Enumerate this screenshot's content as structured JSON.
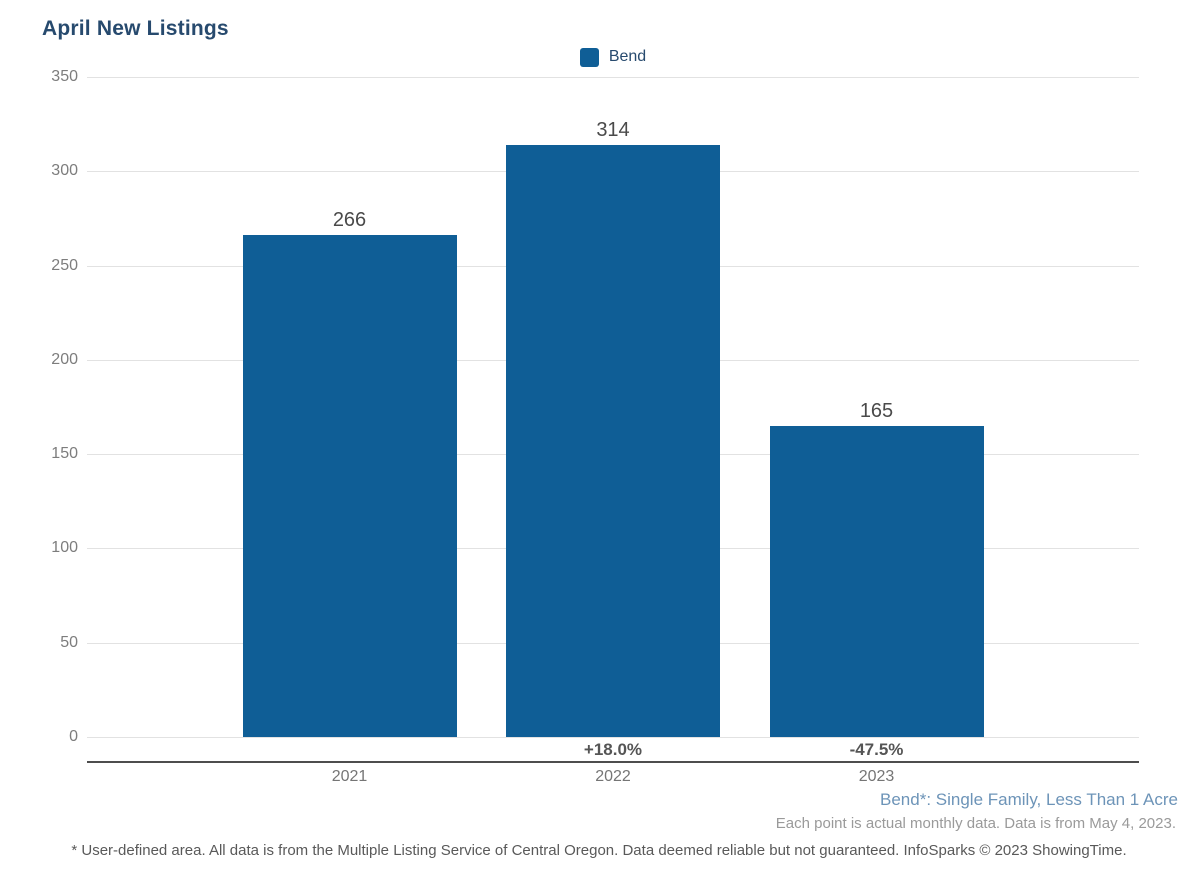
{
  "title": "April New Listings",
  "legend": {
    "label": "Bend",
    "color": "#0f5e96"
  },
  "colors": {
    "bar": "#0f5e96",
    "title_navy": "#274a6e",
    "footnote_blue": "#6d94b8",
    "axis_line": "#4d4d4d"
  },
  "chart_data": {
    "type": "bar",
    "title": "April New Listings",
    "series_name": "Bend",
    "categories": [
      "2021",
      "2022",
      "2023"
    ],
    "values": [
      266,
      314,
      165
    ],
    "value_labels": [
      "266",
      "314",
      "165"
    ],
    "pct_change_labels": [
      "",
      "+18.0%",
      "-47.5%"
    ],
    "xlabel": "",
    "ylabel": "",
    "ylim": [
      0,
      350
    ],
    "yticks": [
      0,
      50,
      100,
      150,
      200,
      250,
      300,
      350
    ],
    "grid": true,
    "legend_position": "top-center",
    "bar_color": "#0f5e96"
  },
  "footnotes": {
    "series_note": "Bend*: Single Family, Less Than 1 Acre",
    "data_note": "Each point is actual monthly data. Data is from May 4, 2023.",
    "disclaimer": "* User-defined area. All data is from the Multiple Listing Service of Central Oregon. Data deemed reliable but not guaranteed. InfoSparks © 2023 ShowingTime."
  }
}
